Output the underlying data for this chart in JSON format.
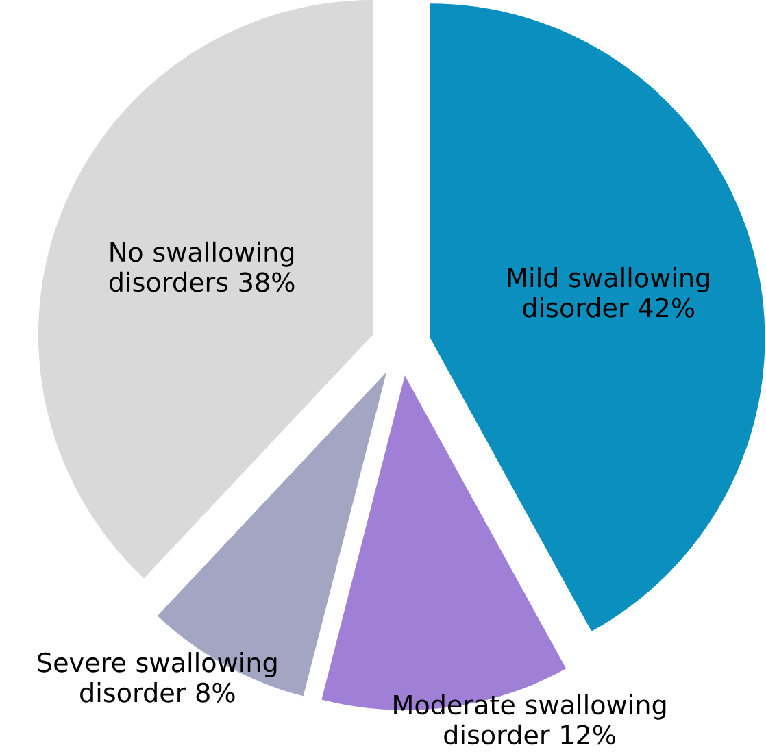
{
  "chart_data": {
    "type": "pie",
    "categories": [
      "Mild swallowing disorder",
      "Moderate swallowing disorder",
      "Severe swallowing disorder",
      "No swallowing disorders"
    ],
    "values": [
      42,
      12,
      8,
      38
    ],
    "value_labels": [
      "42%",
      "12%",
      "8%",
      "38%"
    ],
    "colors": [
      "#0a8fbf",
      "#a07fd6",
      "#a3a5c3",
      "#d9d9d9"
    ]
  }
}
